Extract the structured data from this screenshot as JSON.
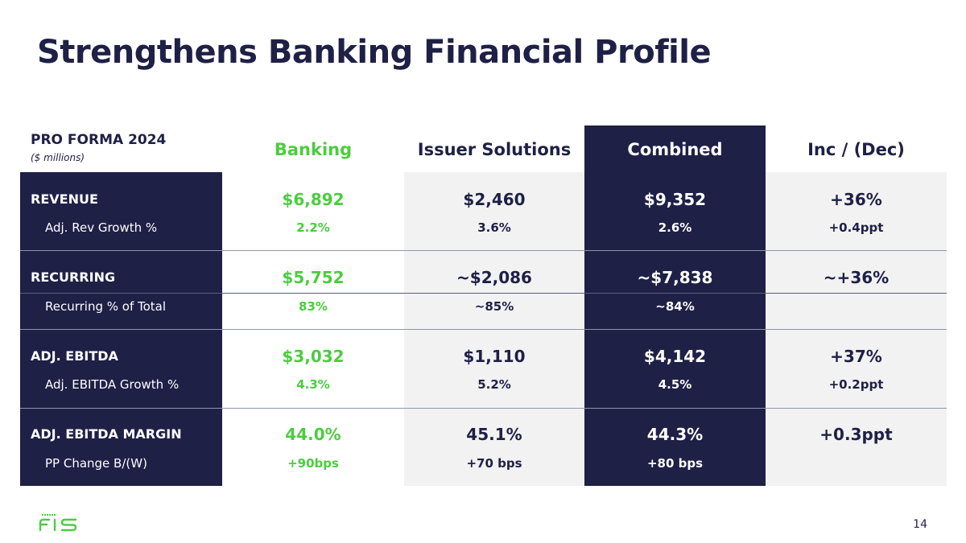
{
  "title": "Strengthens Banking Financial Profile",
  "header": {
    "label": "PRO FORMA 2024",
    "sublabel": "($ millions)",
    "columns": [
      "Banking",
      "Issuer Solutions",
      "Combined",
      "Inc / (Dec)"
    ]
  },
  "rows": [
    {
      "label": "REVENUE",
      "values": [
        "$6,892",
        "$2,460",
        "$9,352",
        "+36%"
      ],
      "sublabel": "Adj. Rev Growth %",
      "subvalues": [
        "2.2%",
        "3.6%",
        "2.6%",
        "+0.4ppt"
      ]
    },
    {
      "label": "RECURRING",
      "values": [
        "$5,752",
        "~$2,086",
        "~$7,838",
        "~+36%"
      ],
      "sublabel": "Recurring % of Total",
      "subvalues": [
        "83%",
        "~85%",
        "~84%",
        ""
      ]
    },
    {
      "label": "ADJ. EBITDA",
      "values": [
        "$3,032",
        "$1,110",
        "$4,142",
        "+37%"
      ],
      "sublabel": "Adj. EBITDA Growth %",
      "subvalues": [
        "4.3%",
        "5.2%",
        "4.5%",
        "+0.2ppt"
      ]
    },
    {
      "label": "ADJ. EBITDA MARGIN",
      "values": [
        "44.0%",
        "45.1%",
        "44.3%",
        "+0.3ppt"
      ],
      "sublabel": "PP Change B/(W)",
      "subvalues": [
        "+90bps",
        "+70 bps",
        "+80 bps",
        ""
      ]
    }
  ],
  "footer": {
    "logo_text": "FIS",
    "page_number": "14"
  },
  "colors": {
    "navy": "#1e2046",
    "green": "#4bcd3e",
    "light_gray": "#f2f2f2"
  }
}
